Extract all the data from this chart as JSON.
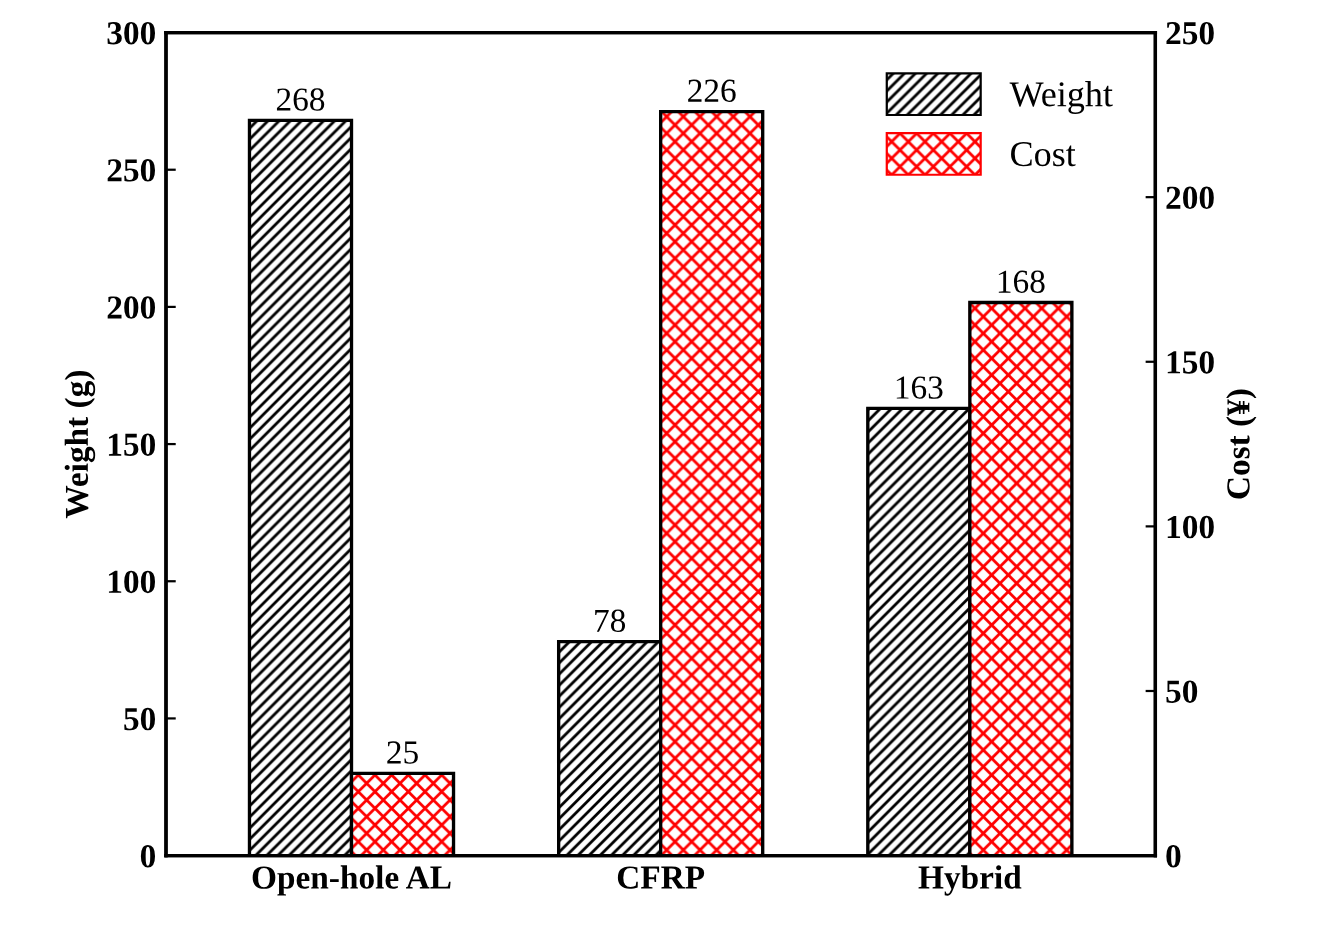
{
  "chart_data": {
    "type": "bar",
    "categories": [
      "Open-hole AL",
      "CFRP",
      "Hybrid"
    ],
    "ylabel": "Weight (g)",
    "y2label": "Cost (¥)",
    "series": [
      {
        "name": "Weight",
        "color": "#000000",
        "values": [
          268,
          78,
          163
        ]
      },
      {
        "name": "Cost",
        "color": "#ff0000",
        "values": [
          25,
          226,
          168
        ],
        "axis": "y2"
      }
    ],
    "ylim": [
      0,
      300
    ],
    "yticks": [
      0,
      50,
      100,
      150,
      200,
      250,
      300
    ],
    "y2lim": [
      0,
      250
    ],
    "y2ticks": [
      0,
      50,
      100,
      150,
      200,
      250
    ],
    "data_labels": true,
    "legend": "top right",
    "grid": false
  }
}
